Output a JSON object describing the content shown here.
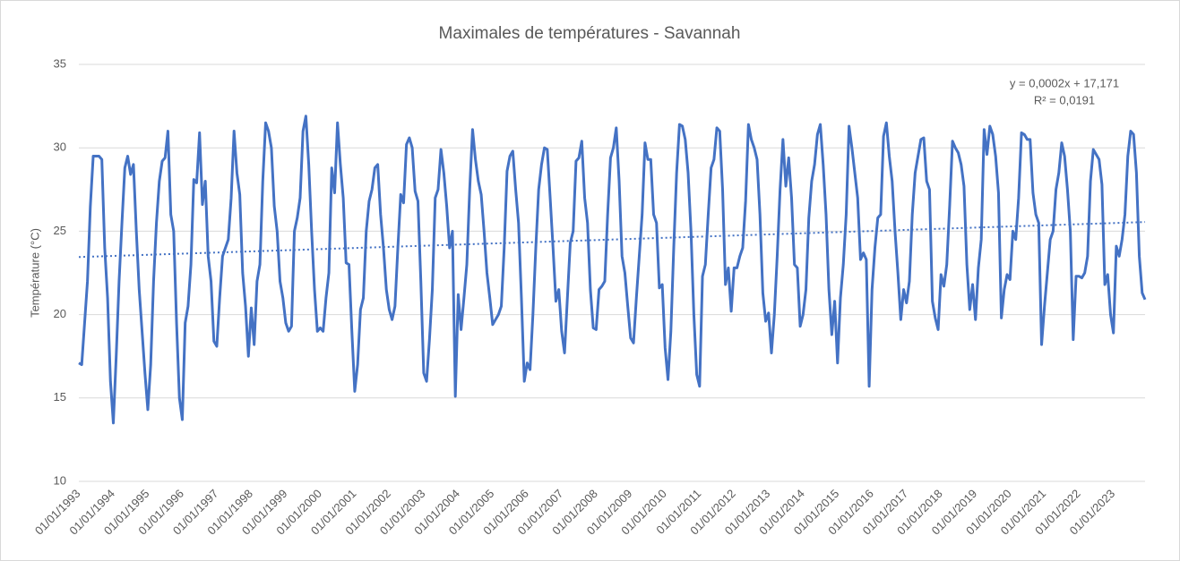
{
  "chart_data": {
    "type": "line",
    "title": "Maximales de températures - Savannah",
    "y_label": "Température (°C)",
    "annotations": [
      "y = 0,0002x + 17,171",
      "R² = 0,0191"
    ],
    "categories": [
      "01/01/1993",
      null,
      null,
      null,
      null,
      null,
      null,
      null,
      null,
      null,
      null,
      null,
      "01/01/1994",
      null,
      null,
      null,
      null,
      null,
      null,
      null,
      null,
      null,
      null,
      null,
      "01/01/1995",
      null,
      null,
      null,
      null,
      null,
      null,
      null,
      null,
      null,
      null,
      null,
      "01/01/1996",
      null,
      null,
      null,
      null,
      null,
      null,
      null,
      null,
      null,
      null,
      null,
      "01/01/1997",
      null,
      null,
      null,
      null,
      null,
      null,
      null,
      null,
      null,
      null,
      null,
      "01/01/1998",
      null,
      null,
      null,
      null,
      null,
      null,
      null,
      null,
      null,
      null,
      null,
      "01/01/1999",
      null,
      null,
      null,
      null,
      null,
      null,
      null,
      null,
      null,
      null,
      null,
      "01/01/2000",
      null,
      null,
      null,
      null,
      null,
      null,
      null,
      null,
      null,
      null,
      null,
      "01/01/2001",
      null,
      null,
      null,
      null,
      null,
      null,
      null,
      null,
      null,
      null,
      null,
      "01/01/2002",
      null,
      null,
      null,
      null,
      null,
      null,
      null,
      null,
      null,
      null,
      null,
      "01/01/2003",
      null,
      null,
      null,
      null,
      null,
      null,
      null,
      null,
      null,
      null,
      null,
      "01/01/2004",
      null,
      null,
      null,
      null,
      null,
      null,
      null,
      null,
      null,
      null,
      null,
      "01/01/2005",
      null,
      null,
      null,
      null,
      null,
      null,
      null,
      null,
      null,
      null,
      null,
      "01/01/2006",
      null,
      null,
      null,
      null,
      null,
      null,
      null,
      null,
      null,
      null,
      null,
      "01/01/2007",
      null,
      null,
      null,
      null,
      null,
      null,
      null,
      null,
      null,
      null,
      null,
      "01/01/2008",
      null,
      null,
      null,
      null,
      null,
      null,
      null,
      null,
      null,
      null,
      null,
      "01/01/2009",
      null,
      null,
      null,
      null,
      null,
      null,
      null,
      null,
      null,
      null,
      null,
      "01/01/2010",
      null,
      null,
      null,
      null,
      null,
      null,
      null,
      null,
      null,
      null,
      null,
      "01/01/2011",
      null,
      null,
      null,
      null,
      null,
      null,
      null,
      null,
      null,
      null,
      null,
      "01/01/2012",
      null,
      null,
      null,
      null,
      null,
      null,
      null,
      null,
      null,
      null,
      null,
      "01/01/2013",
      null,
      null,
      null,
      null,
      null,
      null,
      null,
      null,
      null,
      null,
      null,
      "01/01/2014",
      null,
      null,
      null,
      null,
      null,
      null,
      null,
      null,
      null,
      null,
      null,
      "01/01/2015",
      null,
      null,
      null,
      null,
      null,
      null,
      null,
      null,
      null,
      null,
      null,
      "01/01/2016",
      null,
      null,
      null,
      null,
      null,
      null,
      null,
      null,
      null,
      null,
      null,
      "01/01/2017",
      null,
      null,
      null,
      null,
      null,
      null,
      null,
      null,
      null,
      null,
      null,
      "01/01/2018",
      null,
      null,
      null,
      null,
      null,
      null,
      null,
      null,
      null,
      null,
      null,
      "01/01/2019",
      null,
      null,
      null,
      null,
      null,
      null,
      null,
      null,
      null,
      null,
      null,
      "01/01/2020",
      null,
      null,
      null,
      null,
      null,
      null,
      null,
      null,
      null,
      null,
      null,
      "01/01/2021",
      null,
      null,
      null,
      null,
      null,
      null,
      null,
      null,
      null,
      null,
      null,
      "01/01/2022",
      null,
      null,
      null,
      null,
      null,
      null,
      null,
      null,
      null,
      null,
      null,
      "01/01/2023",
      null,
      null,
      null,
      null,
      null,
      null,
      null,
      null,
      null,
      null,
      null
    ],
    "series": [
      {
        "color": "#4472c4",
        "values": [
          17.1,
          17.0,
          19.5,
          22.0,
          26.5,
          29.5,
          29.5,
          29.5,
          29.3,
          24.0,
          21.0,
          16.0,
          13.5,
          17.5,
          22.0,
          25.5,
          28.8,
          29.5,
          28.4,
          29.0,
          25.0,
          21.5,
          19.0,
          16.5,
          14.3,
          17.0,
          22.0,
          25.5,
          28.0,
          29.2,
          29.4,
          31.0,
          26.0,
          25.0,
          19.5,
          15.0,
          13.7,
          19.5,
          20.5,
          23.0,
          28.1,
          27.9,
          30.9,
          26.6,
          28.0,
          23.5,
          22.0,
          18.4,
          18.1,
          21.0,
          23.5,
          24.0,
          24.5,
          27.0,
          31.0,
          28.5,
          27.2,
          22.5,
          20.5,
          17.5,
          20.4,
          18.2,
          22.0,
          23.0,
          28.0,
          31.5,
          31.0,
          30.0,
          26.5,
          25.0,
          22.0,
          21.0,
          19.5,
          19.0,
          19.3,
          25.0,
          25.8,
          27.0,
          31.0,
          31.9,
          29.0,
          25.0,
          21.5,
          19.0,
          19.2,
          19.0,
          21.0,
          22.5,
          28.8,
          27.3,
          31.5,
          29.0,
          27.0,
          23.1,
          23.0,
          19.0,
          15.4,
          17.0,
          20.3,
          21.0,
          25.0,
          26.8,
          27.5,
          28.8,
          29.0,
          26.0,
          24.0,
          21.5,
          20.3,
          19.7,
          20.5,
          24.0,
          27.2,
          26.7,
          30.2,
          30.6,
          30.0,
          27.4,
          26.8,
          22.0,
          16.5,
          16.0,
          18.5,
          21.5,
          27.0,
          27.5,
          29.9,
          28.5,
          26.5,
          24.0,
          25.0,
          15.1,
          21.2,
          19.1,
          21.0,
          23.0,
          27.5,
          31.1,
          29.3,
          28.0,
          27.2,
          25.0,
          22.5,
          21.0,
          19.4,
          19.7,
          20.0,
          20.5,
          24.0,
          28.6,
          29.5,
          29.8,
          27.5,
          25.5,
          21.0,
          16.0,
          17.1,
          16.7,
          20.0,
          24.0,
          27.5,
          29.0,
          30.0,
          29.9,
          27.0,
          24.0,
          20.8,
          21.5,
          19.0,
          17.7,
          21.0,
          24.3,
          25.0,
          29.2,
          29.4,
          30.4,
          27.0,
          25.5,
          21.5,
          19.2,
          19.1,
          21.5,
          21.7,
          22.0,
          26.0,
          29.4,
          30.0,
          31.2,
          28.0,
          23.5,
          22.5,
          20.5,
          18.6,
          18.3,
          21.0,
          23.5,
          26.0,
          30.3,
          29.3,
          29.3,
          26.0,
          25.5,
          21.6,
          21.8,
          18.0,
          16.1,
          19.0,
          24.0,
          28.5,
          31.4,
          31.3,
          30.5,
          28.5,
          25.0,
          20.0,
          16.4,
          15.7,
          22.3,
          23.0,
          26.0,
          28.8,
          29.3,
          31.2,
          31.0,
          27.5,
          21.8,
          22.8,
          20.2,
          22.8,
          22.8,
          23.5,
          24.0,
          26.8,
          31.4,
          30.5,
          30.0,
          29.3,
          26.0,
          21.3,
          19.6,
          20.1,
          17.7,
          20.0,
          23.5,
          27.5,
          30.5,
          27.7,
          29.4,
          27.0,
          23.0,
          22.8,
          19.3,
          20.0,
          21.5,
          25.8,
          28.0,
          29.0,
          30.8,
          31.4,
          29.0,
          26.0,
          21.5,
          18.8,
          20.8,
          17.1,
          21.0,
          23.0,
          26.0,
          31.3,
          30.0,
          28.5,
          27.0,
          23.3,
          23.7,
          23.3,
          15.7,
          21.5,
          24.0,
          25.8,
          26.0,
          30.7,
          31.5,
          29.5,
          28.0,
          25.0,
          22.5,
          19.7,
          21.5,
          20.7,
          22.0,
          26.0,
          28.5,
          29.5,
          30.5,
          30.6,
          28.0,
          27.5,
          20.8,
          19.8,
          19.1,
          22.4,
          21.7,
          23.0,
          26.5,
          30.4,
          30.0,
          29.7,
          29.0,
          27.7,
          23.0,
          20.3,
          21.8,
          19.7,
          22.8,
          24.5,
          31.1,
          29.6,
          31.3,
          30.8,
          29.5,
          27.3,
          19.8,
          21.5,
          22.4,
          22.1,
          25.0,
          24.5,
          27.0,
          30.9,
          30.8,
          30.5,
          30.5,
          27.3,
          26.0,
          25.5,
          18.2,
          20.5,
          22.5,
          24.5,
          25.0,
          27.5,
          28.5,
          30.3,
          29.5,
          27.5,
          25.0,
          18.5,
          22.3,
          22.3,
          22.2,
          22.5,
          23.5,
          28.0,
          29.9,
          29.6,
          29.3,
          27.8,
          21.8,
          22.4,
          20.0,
          18.9,
          24.1,
          23.5,
          24.5,
          26.0,
          29.5,
          31.0,
          30.8,
          28.5,
          23.5,
          21.3,
          20.9
        ]
      }
    ],
    "trendline": {
      "color": "#4472c4",
      "values": [
        23.45,
        25.55
      ]
    },
    "ylim": [
      10,
      35
    ],
    "yticks": [
      10,
      15,
      20,
      25,
      30,
      35
    ],
    "grid": true
  }
}
